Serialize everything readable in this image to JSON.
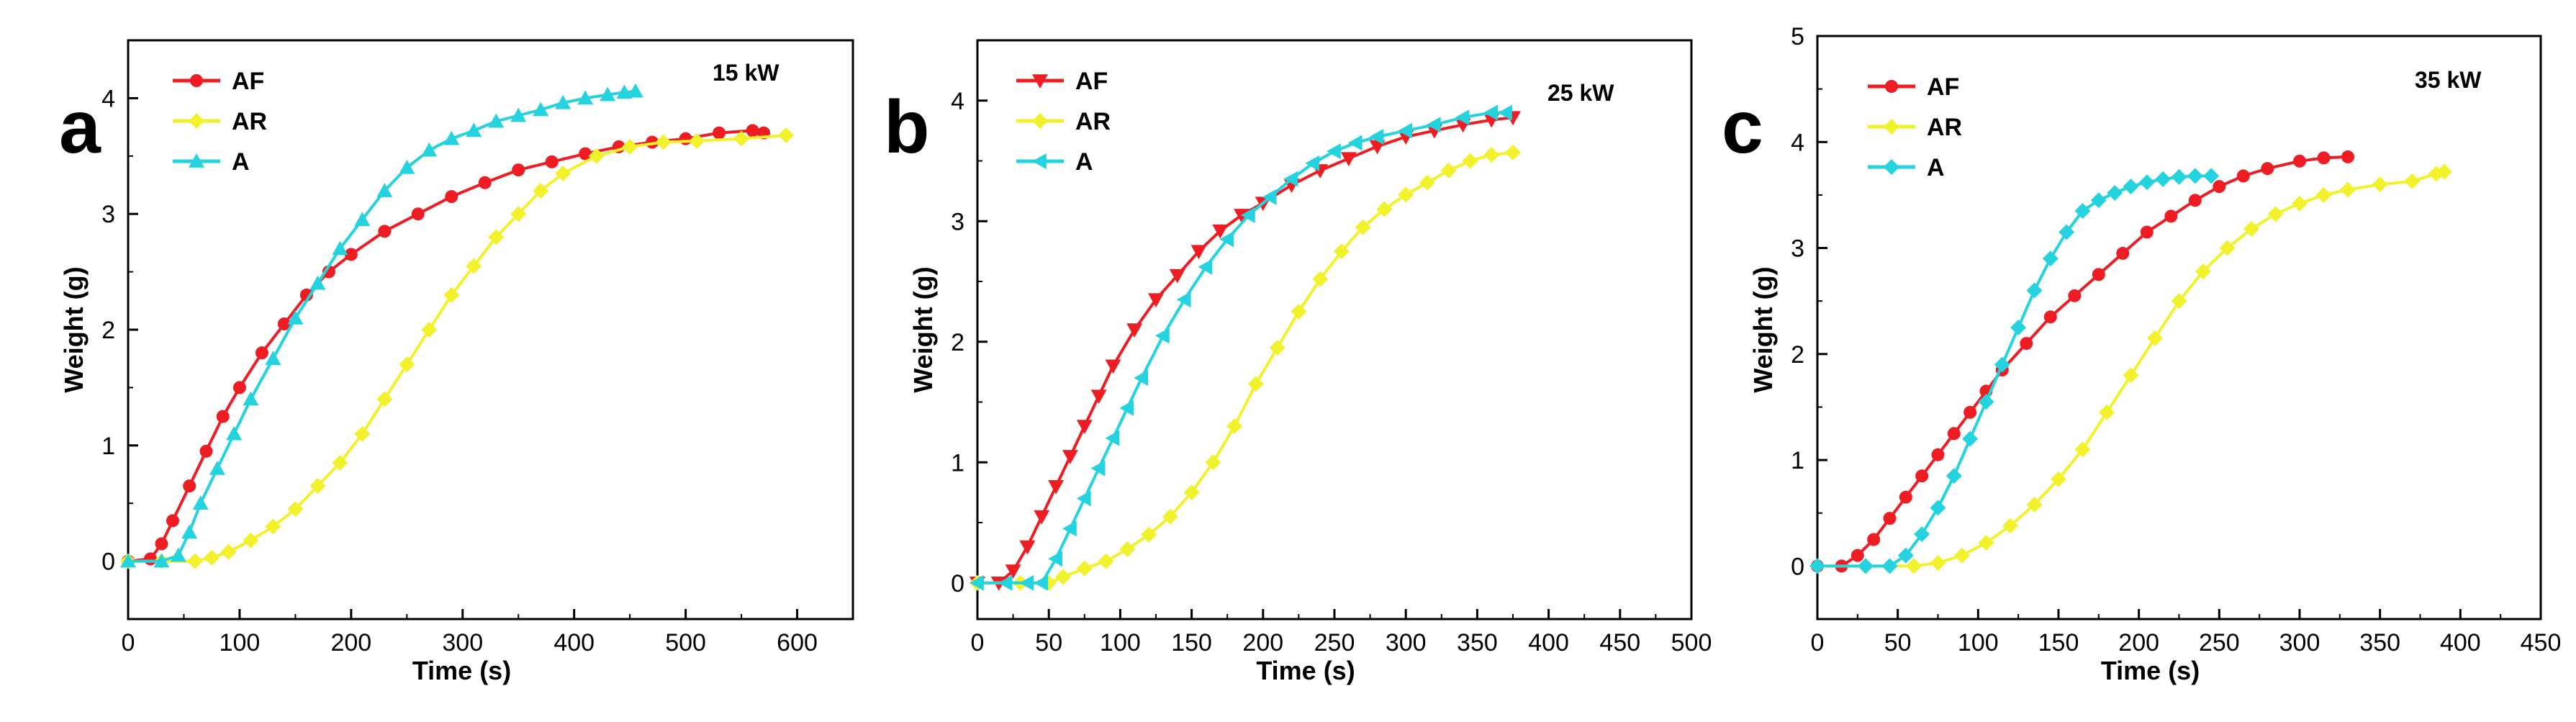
{
  "colors": {
    "AF": "#ee1d23",
    "AR": "#f2f22c",
    "A": "#24d3de",
    "axis": "#000000"
  },
  "chart_data": [
    {
      "type": "line",
      "panel_label": "a",
      "annotation": "15 kW",
      "xlabel": "Time (s)",
      "ylabel": "Weight (g)",
      "xlim": [
        0,
        650
      ],
      "ylim": [
        -0.5,
        4.5
      ],
      "xticks": [
        0,
        100,
        200,
        300,
        400,
        500,
        600
      ],
      "yticks": [
        0,
        1,
        2,
        3,
        4
      ],
      "tick_labels_x": [
        "0",
        "100",
        "200",
        "300",
        "400",
        "500",
        "600"
      ],
      "tick_labels_y": [
        "0",
        "1",
        "2",
        "3",
        "4"
      ],
      "series": [
        {
          "name": "AF",
          "marker": "circle",
          "color_key": "AF",
          "points": [
            [
              0,
              0
            ],
            [
              20,
              0.02
            ],
            [
              30,
              0.15
            ],
            [
              40,
              0.35
            ],
            [
              55,
              0.65
            ],
            [
              70,
              0.95
            ],
            [
              85,
              1.25
            ],
            [
              100,
              1.5
            ],
            [
              120,
              1.8
            ],
            [
              140,
              2.05
            ],
            [
              160,
              2.3
            ],
            [
              180,
              2.5
            ],
            [
              200,
              2.65
            ],
            [
              230,
              2.85
            ],
            [
              260,
              3.0
            ],
            [
              290,
              3.15
            ],
            [
              320,
              3.27
            ],
            [
              350,
              3.38
            ],
            [
              380,
              3.45
            ],
            [
              410,
              3.52
            ],
            [
              440,
              3.58
            ],
            [
              470,
              3.62
            ],
            [
              500,
              3.65
            ],
            [
              530,
              3.7
            ],
            [
              560,
              3.72
            ],
            [
              570,
              3.7
            ]
          ]
        },
        {
          "name": "AR",
          "marker": "diamond",
          "color_key": "AR",
          "points": [
            [
              0,
              0
            ],
            [
              30,
              0
            ],
            [
              60,
              0
            ],
            [
              75,
              0.03
            ],
            [
              90,
              0.08
            ],
            [
              110,
              0.18
            ],
            [
              130,
              0.3
            ],
            [
              150,
              0.45
            ],
            [
              170,
              0.65
            ],
            [
              190,
              0.85
            ],
            [
              210,
              1.1
            ],
            [
              230,
              1.4
            ],
            [
              250,
              1.7
            ],
            [
              270,
              2.0
            ],
            [
              290,
              2.3
            ],
            [
              310,
              2.55
            ],
            [
              330,
              2.8
            ],
            [
              350,
              3.0
            ],
            [
              370,
              3.2
            ],
            [
              390,
              3.35
            ],
            [
              420,
              3.5
            ],
            [
              450,
              3.58
            ],
            [
              480,
              3.62
            ],
            [
              510,
              3.63
            ],
            [
              550,
              3.65
            ],
            [
              590,
              3.68
            ]
          ]
        },
        {
          "name": "A",
          "marker": "triangle-up",
          "color_key": "A",
          "points": [
            [
              0,
              0
            ],
            [
              30,
              0
            ],
            [
              45,
              0.05
            ],
            [
              55,
              0.25
            ],
            [
              65,
              0.5
            ],
            [
              80,
              0.8
            ],
            [
              95,
              1.1
            ],
            [
              110,
              1.4
            ],
            [
              130,
              1.75
            ],
            [
              150,
              2.1
            ],
            [
              170,
              2.4
            ],
            [
              190,
              2.7
            ],
            [
              210,
              2.95
            ],
            [
              230,
              3.2
            ],
            [
              250,
              3.4
            ],
            [
              270,
              3.55
            ],
            [
              290,
              3.65
            ],
            [
              310,
              3.72
            ],
            [
              330,
              3.8
            ],
            [
              350,
              3.85
            ],
            [
              370,
              3.9
            ],
            [
              390,
              3.96
            ],
            [
              410,
              4.0
            ],
            [
              430,
              4.03
            ],
            [
              445,
              4.05
            ],
            [
              455,
              4.06
            ]
          ]
        }
      ]
    },
    {
      "type": "line",
      "panel_label": "b",
      "annotation": "25 kW",
      "xlabel": "Time (s)",
      "ylabel": "Weight (g)",
      "xlim": [
        0,
        500
      ],
      "ylim": [
        -0.3,
        4.5
      ],
      "xticks": [
        0,
        50,
        100,
        150,
        200,
        250,
        300,
        350,
        400,
        450,
        500
      ],
      "yticks": [
        0,
        1,
        2,
        3,
        4
      ],
      "tick_labels_x": [
        "0",
        "50",
        "100",
        "150",
        "200",
        "250",
        "300",
        "350",
        "400",
        "450",
        "500"
      ],
      "tick_labels_y": [
        "0",
        "1",
        "2",
        "3",
        "4"
      ],
      "series": [
        {
          "name": "AF",
          "marker": "triangle-down",
          "color_key": "AF",
          "points": [
            [
              0,
              0
            ],
            [
              15,
              0
            ],
            [
              25,
              0.1
            ],
            [
              35,
              0.3
            ],
            [
              45,
              0.55
            ],
            [
              55,
              0.8
            ],
            [
              65,
              1.05
            ],
            [
              75,
              1.3
            ],
            [
              85,
              1.55
            ],
            [
              95,
              1.8
            ],
            [
              110,
              2.1
            ],
            [
              125,
              2.35
            ],
            [
              140,
              2.55
            ],
            [
              155,
              2.75
            ],
            [
              170,
              2.92
            ],
            [
              185,
              3.05
            ],
            [
              200,
              3.15
            ],
            [
              220,
              3.3
            ],
            [
              240,
              3.42
            ],
            [
              260,
              3.52
            ],
            [
              280,
              3.62
            ],
            [
              300,
              3.7
            ],
            [
              320,
              3.75
            ],
            [
              340,
              3.8
            ],
            [
              360,
              3.84
            ],
            [
              375,
              3.86
            ]
          ]
        },
        {
          "name": "AR",
          "marker": "diamond",
          "color_key": "AR",
          "points": [
            [
              0,
              0
            ],
            [
              30,
              0
            ],
            [
              50,
              0
            ],
            [
              60,
              0.05
            ],
            [
              75,
              0.12
            ],
            [
              90,
              0.18
            ],
            [
              105,
              0.28
            ],
            [
              120,
              0.4
            ],
            [
              135,
              0.55
            ],
            [
              150,
              0.75
            ],
            [
              165,
              1.0
            ],
            [
              180,
              1.3
            ],
            [
              195,
              1.65
            ],
            [
              210,
              1.95
            ],
            [
              225,
              2.25
            ],
            [
              240,
              2.52
            ],
            [
              255,
              2.75
            ],
            [
              270,
              2.95
            ],
            [
              285,
              3.1
            ],
            [
              300,
              3.22
            ],
            [
              315,
              3.32
            ],
            [
              330,
              3.42
            ],
            [
              345,
              3.5
            ],
            [
              360,
              3.55
            ],
            [
              375,
              3.57
            ]
          ]
        },
        {
          "name": "A",
          "marker": "triangle-left",
          "color_key": "A",
          "points": [
            [
              0,
              0
            ],
            [
              20,
              0
            ],
            [
              35,
              0
            ],
            [
              45,
              0
            ],
            [
              55,
              0.2
            ],
            [
              65,
              0.45
            ],
            [
              75,
              0.7
            ],
            [
              85,
              0.95
            ],
            [
              95,
              1.2
            ],
            [
              105,
              1.45
            ],
            [
              115,
              1.7
            ],
            [
              130,
              2.05
            ],
            [
              145,
              2.35
            ],
            [
              160,
              2.62
            ],
            [
              175,
              2.85
            ],
            [
              190,
              3.05
            ],
            [
              205,
              3.2
            ],
            [
              220,
              3.35
            ],
            [
              235,
              3.48
            ],
            [
              250,
              3.58
            ],
            [
              265,
              3.65
            ],
            [
              280,
              3.7
            ],
            [
              300,
              3.75
            ],
            [
              320,
              3.8
            ],
            [
              340,
              3.86
            ],
            [
              360,
              3.9
            ],
            [
              370,
              3.9
            ]
          ]
        }
      ]
    },
    {
      "type": "line",
      "panel_label": "c",
      "annotation": "35 kW",
      "xlabel": "Time (s)",
      "ylabel": "Weight (g)",
      "xlim": [
        0,
        450
      ],
      "ylim": [
        -0.5,
        5
      ],
      "xticks": [
        0,
        50,
        100,
        150,
        200,
        250,
        300,
        350,
        400,
        450
      ],
      "yticks": [
        0,
        1,
        2,
        3,
        4,
        5
      ],
      "tick_labels_x": [
        "0",
        "50",
        "100",
        "150",
        "200",
        "250",
        "300",
        "350",
        "400",
        "450"
      ],
      "tick_labels_y": [
        "0",
        "1",
        "2",
        "3",
        "4",
        "5"
      ],
      "series": [
        {
          "name": "AF",
          "marker": "circle",
          "color_key": "AF",
          "points": [
            [
              0,
              0
            ],
            [
              15,
              0
            ],
            [
              25,
              0.1
            ],
            [
              35,
              0.25
            ],
            [
              45,
              0.45
            ],
            [
              55,
              0.65
            ],
            [
              65,
              0.85
            ],
            [
              75,
              1.05
            ],
            [
              85,
              1.25
            ],
            [
              95,
              1.45
            ],
            [
              105,
              1.65
            ],
            [
              115,
              1.85
            ],
            [
              130,
              2.1
            ],
            [
              145,
              2.35
            ],
            [
              160,
              2.55
            ],
            [
              175,
              2.75
            ],
            [
              190,
              2.95
            ],
            [
              205,
              3.15
            ],
            [
              220,
              3.3
            ],
            [
              235,
              3.45
            ],
            [
              250,
              3.58
            ],
            [
              265,
              3.68
            ],
            [
              280,
              3.75
            ],
            [
              300,
              3.82
            ],
            [
              315,
              3.85
            ],
            [
              330,
              3.86
            ]
          ]
        },
        {
          "name": "AR",
          "marker": "diamond",
          "color_key": "AR",
          "points": [
            [
              0,
              0
            ],
            [
              30,
              0
            ],
            [
              60,
              0
            ],
            [
              75,
              0.03
            ],
            [
              90,
              0.1
            ],
            [
              105,
              0.22
            ],
            [
              120,
              0.38
            ],
            [
              135,
              0.58
            ],
            [
              150,
              0.82
            ],
            [
              165,
              1.1
            ],
            [
              180,
              1.45
            ],
            [
              195,
              1.8
            ],
            [
              210,
              2.15
            ],
            [
              225,
              2.5
            ],
            [
              240,
              2.78
            ],
            [
              255,
              3.0
            ],
            [
              270,
              3.18
            ],
            [
              285,
              3.32
            ],
            [
              300,
              3.42
            ],
            [
              315,
              3.5
            ],
            [
              330,
              3.55
            ],
            [
              350,
              3.6
            ],
            [
              370,
              3.63
            ],
            [
              385,
              3.7
            ],
            [
              390,
              3.72
            ]
          ]
        },
        {
          "name": "A",
          "marker": "diamond",
          "color_key": "A",
          "points": [
            [
              0,
              0
            ],
            [
              30,
              0
            ],
            [
              45,
              0
            ],
            [
              55,
              0.1
            ],
            [
              65,
              0.3
            ],
            [
              75,
              0.55
            ],
            [
              85,
              0.85
            ],
            [
              95,
              1.2
            ],
            [
              105,
              1.55
            ],
            [
              115,
              1.9
            ],
            [
              125,
              2.25
            ],
            [
              135,
              2.6
            ],
            [
              145,
              2.9
            ],
            [
              155,
              3.15
            ],
            [
              165,
              3.35
            ],
            [
              175,
              3.45
            ],
            [
              185,
              3.52
            ],
            [
              195,
              3.58
            ],
            [
              205,
              3.62
            ],
            [
              215,
              3.65
            ],
            [
              225,
              3.67
            ],
            [
              235,
              3.68
            ],
            [
              245,
              3.68
            ]
          ]
        }
      ]
    }
  ]
}
